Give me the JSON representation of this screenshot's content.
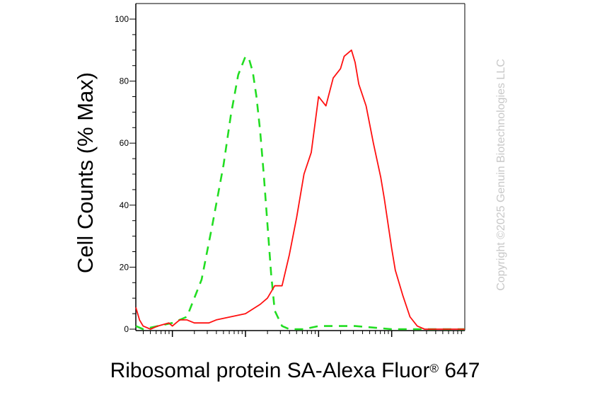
{
  "chart_data": {
    "type": "line",
    "xlabel": "Ribosomal protein SA-Alexa Fluor",
    "xlabel_mark": "®",
    "xlabel_suffix": "647",
    "ylabel": "Cell Counts (% Max)",
    "ylim": [
      0,
      100
    ],
    "yticks": [
      0,
      20,
      40,
      60,
      80,
      100
    ],
    "xscale": "log",
    "xlim": [
      -0.5,
      4.0
    ],
    "series": [
      {
        "style": "dashed",
        "color": "#22dd22",
        "x": [
          -0.5,
          -0.4,
          -0.2,
          0.0,
          0.2,
          0.4,
          0.55,
          0.7,
          0.8,
          0.9,
          1.0,
          1.05,
          1.1,
          1.15,
          1.2,
          1.25,
          1.3,
          1.35,
          1.4,
          1.5,
          1.6,
          1.7,
          1.8,
          2.0,
          2.5,
          3.0,
          3.5,
          4.0
        ],
        "y": [
          1,
          0,
          1,
          2,
          4,
          16,
          34,
          53,
          69,
          82,
          88,
          87,
          83,
          75,
          64,
          50,
          34,
          18,
          6,
          1,
          0,
          0,
          0,
          1,
          1,
          0,
          0,
          0
        ]
      },
      {
        "style": "solid",
        "color": "#ff1010",
        "x": [
          -0.5,
          -0.45,
          -0.4,
          -0.3,
          -0.2,
          -0.05,
          0.0,
          0.05,
          0.1,
          0.2,
          0.3,
          0.4,
          0.5,
          0.6,
          0.8,
          1.0,
          1.2,
          1.3,
          1.4,
          1.5,
          1.6,
          1.7,
          1.8,
          1.9,
          2.0,
          2.1,
          2.2,
          2.3,
          2.35,
          2.45,
          2.5,
          2.55,
          2.65,
          2.75,
          2.85,
          2.9,
          2.95,
          3.0,
          3.05,
          3.15,
          3.25,
          3.35,
          3.45,
          3.6,
          3.8,
          4.0
        ],
        "y": [
          7,
          3,
          1,
          0,
          1,
          2,
          1,
          2,
          3,
          3,
          2,
          2,
          2,
          3,
          4,
          5,
          8,
          10,
          14,
          14,
          24,
          36,
          50,
          57,
          75,
          72,
          81,
          84,
          88,
          90,
          86,
          79,
          72,
          60,
          49,
          42,
          34,
          26,
          19,
          11,
          4,
          1,
          0,
          0,
          0,
          0
        ]
      }
    ]
  },
  "watermark": "Copyright ©2025 Genuin Biotechnologies LLC"
}
